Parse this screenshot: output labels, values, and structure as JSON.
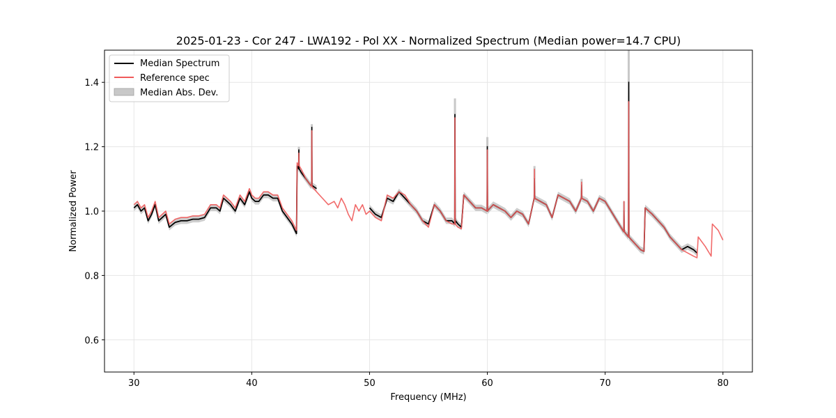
{
  "chart_data": {
    "type": "line",
    "title": "2025-01-23 - Cor 247 - LWA192 - Pol XX - Normalized Spectrum (Median power=14.7 CPU)",
    "xlabel": "Frequency (MHz)",
    "ylabel": "Normalized Power",
    "xlim": [
      27.5,
      82.5
    ],
    "ylim": [
      0.5,
      1.5
    ],
    "xticks": [
      30,
      40,
      50,
      60,
      70,
      80
    ],
    "yticks": [
      0.6,
      0.8,
      1.0,
      1.2,
      1.4
    ],
    "ytick_labels": [
      "0.6",
      "0.8",
      "1.0",
      "1.2",
      "1.4"
    ],
    "grid": true,
    "legend": {
      "position": "top-left",
      "entries": [
        {
          "label": "Median Spectrum",
          "color": "#000000",
          "kind": "line"
        },
        {
          "label": "Reference spec",
          "color": "#f05a5a",
          "kind": "line"
        },
        {
          "label": "Median Abs. Dev.",
          "color": "#c8c8c8",
          "kind": "patch"
        }
      ]
    },
    "series": [
      {
        "name": "Median Spectrum",
        "color": "#000000",
        "segments": [
          {
            "x": [
              30.0,
              30.3,
              30.6,
              30.9,
              31.2,
              31.5,
              31.8,
              32.1,
              32.4,
              32.7,
              33.0,
              33.5,
              34.0,
              34.5,
              35.0,
              35.5,
              36.0,
              36.5,
              37.0,
              37.3,
              37.6,
              37.9,
              38.2,
              38.6,
              39.0,
              39.4,
              39.8,
              40.0,
              40.3,
              40.6,
              41.0,
              41.4,
              41.8,
              42.2,
              42.6,
              43.0,
              43.4,
              43.8,
              43.85,
              44.2,
              44.6,
              45.0,
              45.1,
              45.5
            ],
            "y": [
              1.01,
              1.02,
              1.0,
              1.01,
              0.97,
              0.99,
              1.02,
              0.97,
              0.98,
              0.99,
              0.95,
              0.965,
              0.97,
              0.97,
              0.975,
              0.975,
              0.98,
              1.01,
              1.01,
              1.0,
              1.04,
              1.03,
              1.02,
              1.0,
              1.04,
              1.02,
              1.06,
              1.04,
              1.03,
              1.03,
              1.05,
              1.05,
              1.04,
              1.04,
              1.0,
              0.98,
              0.96,
              0.93,
              1.14,
              1.12,
              1.1,
              1.08,
              1.08,
              1.07
            ]
          },
          {
            "x": [
              50.0,
              50.5,
              51.0,
              51.5,
              52.0,
              52.5,
              53.0,
              53.5,
              54.0,
              54.5,
              55.0,
              55.5,
              56.0,
              56.5,
              57.0,
              57.25,
              57.3,
              57.5,
              57.8,
              58.0,
              58.5,
              59.0,
              59.5,
              60.0,
              60.5,
              61.0,
              61.5,
              62.0,
              62.5,
              63.0,
              63.5,
              64.0,
              64.5,
              65.0,
              65.5,
              66.0,
              66.5,
              67.0,
              67.5,
              68.0,
              68.5,
              69.0,
              69.5,
              70.0,
              70.5,
              71.0,
              71.5,
              72.0,
              72.5,
              73.0,
              73.3,
              73.4,
              74.0,
              74.5,
              75.0,
              75.5,
              76.0,
              76.5,
              77.0,
              77.5,
              77.8
            ],
            "y": [
              1.01,
              0.99,
              0.98,
              1.04,
              1.03,
              1.06,
              1.04,
              1.02,
              1.0,
              0.97,
              0.96,
              1.02,
              1.0,
              0.97,
              0.97,
              0.96,
              0.97,
              0.96,
              0.95,
              1.05,
              1.03,
              1.01,
              1.01,
              1.0,
              1.02,
              1.01,
              1.0,
              0.98,
              1.0,
              0.99,
              0.96,
              1.04,
              1.03,
              1.02,
              0.98,
              1.05,
              1.04,
              1.03,
              1.0,
              1.04,
              1.03,
              1.0,
              1.04,
              1.03,
              1.0,
              0.97,
              0.94,
              0.92,
              0.9,
              0.88,
              0.875,
              1.01,
              0.99,
              0.97,
              0.95,
              0.92,
              0.9,
              0.88,
              0.89,
              0.88,
              0.87
            ]
          }
        ]
      },
      {
        "name": "Reference spec",
        "color": "#f05a5a",
        "segments": [
          {
            "x": [
              30.0,
              30.3,
              30.6,
              30.9,
              31.2,
              31.5,
              31.8,
              32.1,
              32.4,
              32.7,
              33.0,
              33.5,
              34.0,
              34.5,
              35.0,
              35.5,
              36.0,
              36.5,
              37.0,
              37.3,
              37.6,
              37.9,
              38.2,
              38.6,
              39.0,
              39.4,
              39.8,
              40.0,
              40.3,
              40.6,
              41.0,
              41.4,
              41.8,
              42.2,
              42.6,
              43.0,
              43.4,
              43.8,
              43.85,
              44.2,
              44.6,
              45.0,
              45.5,
              46.0,
              46.5,
              47.0,
              47.3,
              47.6,
              47.9,
              48.2,
              48.5,
              48.8,
              49.1,
              49.4,
              49.7,
              50.0,
              50.5,
              51.0,
              51.5,
              52.0,
              52.5,
              53.0,
              53.5,
              54.0,
              54.5,
              55.0,
              55.5,
              56.0,
              56.5,
              57.0,
              57.25,
              57.5,
              57.8,
              58.0,
              58.5,
              59.0,
              59.5,
              60.0,
              60.5,
              61.0,
              61.5,
              62.0,
              62.5,
              63.0,
              63.5,
              64.0,
              64.5,
              65.0,
              65.5,
              66.0,
              66.5,
              67.0,
              67.5,
              68.0,
              68.5,
              69.0,
              69.5,
              70.0,
              70.5,
              71.0,
              71.5,
              72.0,
              72.5,
              73.0,
              73.3,
              73.4,
              74.0,
              74.5,
              75.0,
              75.5,
              76.0,
              76.5,
              77.0,
              77.5,
              77.8,
              77.9,
              78.5,
              79.0,
              79.1,
              79.6,
              80.0
            ],
            "y": [
              1.02,
              1.03,
              1.01,
              1.02,
              0.98,
              1.0,
              1.03,
              0.98,
              0.99,
              1.0,
              0.96,
              0.975,
              0.98,
              0.98,
              0.985,
              0.985,
              0.99,
              1.02,
              1.02,
              1.01,
              1.05,
              1.04,
              1.03,
              1.01,
              1.05,
              1.03,
              1.07,
              1.05,
              1.04,
              1.04,
              1.06,
              1.06,
              1.05,
              1.05,
              1.01,
              0.99,
              0.97,
              0.94,
              1.15,
              1.13,
              1.1,
              1.08,
              1.06,
              1.04,
              1.02,
              1.03,
              1.01,
              1.04,
              1.02,
              0.99,
              0.97,
              1.02,
              1.0,
              1.02,
              0.99,
              1.0,
              0.98,
              0.97,
              1.05,
              1.04,
              1.06,
              1.05,
              1.02,
              1.0,
              0.97,
              0.95,
              1.02,
              1.0,
              0.97,
              0.96,
              0.96,
              0.95,
              0.945,
              1.05,
              1.03,
              1.01,
              1.01,
              1.0,
              1.02,
              1.01,
              1.0,
              0.98,
              1.0,
              0.99,
              0.96,
              1.04,
              1.03,
              1.02,
              0.98,
              1.05,
              1.04,
              1.03,
              1.0,
              1.04,
              1.03,
              1.0,
              1.04,
              1.03,
              1.0,
              0.97,
              0.94,
              0.92,
              0.9,
              0.88,
              0.875,
              1.01,
              0.99,
              0.97,
              0.95,
              0.92,
              0.9,
              0.88,
              0.87,
              0.86,
              0.855,
              0.92,
              0.89,
              0.86,
              0.96,
              0.94,
              0.91
            ]
          }
        ]
      }
    ],
    "spikes": [
      {
        "x": 44.0,
        "median": 1.19,
        "reference": 1.18,
        "mad_top": 1.2
      },
      {
        "x": 45.1,
        "median": 1.26,
        "reference": 1.25,
        "mad_top": 1.27
      },
      {
        "x": 57.25,
        "median": 1.3,
        "reference": 1.29,
        "mad_top": 1.35
      },
      {
        "x": 60.0,
        "median": 1.2,
        "reference": 1.19,
        "mad_top": 1.23
      },
      {
        "x": 64.0,
        "median": 1.1,
        "reference": 1.13,
        "mad_top": 1.14
      },
      {
        "x": 68.0,
        "median": 1.08,
        "reference": 1.09,
        "mad_top": 1.1
      },
      {
        "x": 71.6,
        "median": 1.0,
        "reference": 1.03,
        "mad_top": 1.03
      },
      {
        "x": 72.0,
        "median": 1.4,
        "reference": 1.34,
        "mad_top": 1.5
      }
    ],
    "mad_halfwidth": 0.01
  }
}
